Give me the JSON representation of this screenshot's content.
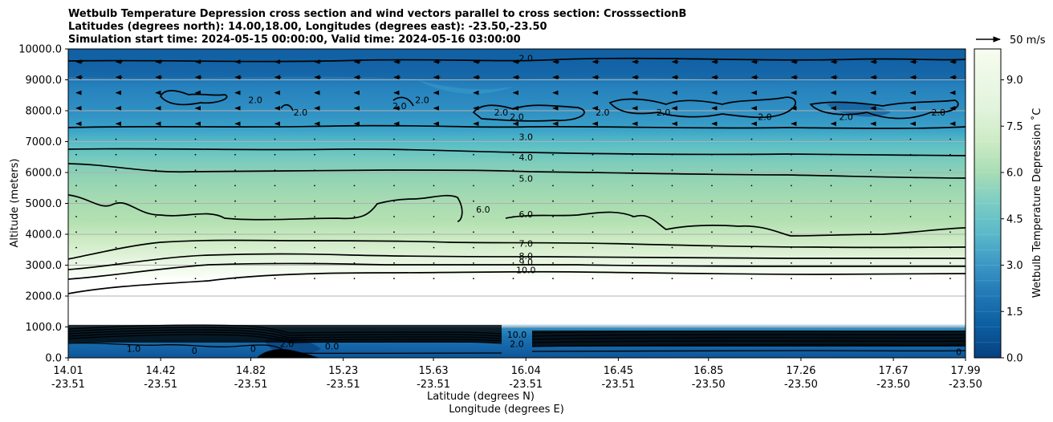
{
  "chart_data": {
    "type": "contour",
    "title_lines": [
      "Wetbulb Temperature Depression cross section and wind vectors parallel to cross section: CrosssectionB",
      "Latitudes (degrees north): 14.00,18.00, Longitudes (degrees east): -23.50,-23.50",
      "Simulation start time: 2024-05-15 00:00:00, Valid time: 2024-05-16 03:00:00"
    ],
    "xlabel": "Latitude (degrees N)",
    "xlabel2": "Longitude (degrees E)",
    "ylabel": "Altitude (meters)",
    "colorbar_label": "Wetbulb Temperature Depression ˚C",
    "quiver_key_label": "50 m/s",
    "xlim": [
      14.01,
      17.99
    ],
    "ylim": [
      0,
      10000
    ],
    "x_ticks": [
      {
        "lat": "14.01",
        "lon": "-23.51"
      },
      {
        "lat": "14.42",
        "lon": "-23.51"
      },
      {
        "lat": "14.82",
        "lon": "-23.51"
      },
      {
        "lat": "15.23",
        "lon": "-23.51"
      },
      {
        "lat": "15.63",
        "lon": "-23.51"
      },
      {
        "lat": "16.04",
        "lon": "-23.51"
      },
      {
        "lat": "16.45",
        "lon": "-23.51"
      },
      {
        "lat": "16.85",
        "lon": "-23.50"
      },
      {
        "lat": "17.26",
        "lon": "-23.50"
      },
      {
        "lat": "17.67",
        "lon": "-23.50"
      },
      {
        "lat": "17.99",
        "lon": "-23.50"
      }
    ],
    "y_ticks": [
      "0.0",
      "1000.0",
      "2000.0",
      "3000.0",
      "4000.0",
      "5000.0",
      "6000.0",
      "7000.0",
      "8000.0",
      "9000.0",
      "10000.0"
    ],
    "colorbar_ticks": [
      "0.0",
      "1.5",
      "3.0",
      "4.5",
      "6.0",
      "7.5",
      "9.0"
    ],
    "colorbar_range": [
      0,
      10
    ],
    "grid": "horizontal",
    "contour_labels": [
      {
        "text": "2.0",
        "lat": 16.04,
        "alt": 9700
      },
      {
        "text": "2.0",
        "lat": 14.84,
        "alt": 8350
      },
      {
        "text": "2.0",
        "lat": 15.04,
        "alt": 7950
      },
      {
        "text": "2.0",
        "lat": 15.48,
        "alt": 8150
      },
      {
        "text": "2.0",
        "lat": 15.58,
        "alt": 8350
      },
      {
        "text": "2.0",
        "lat": 15.93,
        "alt": 7950
      },
      {
        "text": "2.0",
        "lat": 16.0,
        "alt": 7800
      },
      {
        "text": "2.0",
        "lat": 16.38,
        "alt": 7950
      },
      {
        "text": "2.0",
        "lat": 16.65,
        "alt": 7950
      },
      {
        "text": "2.0",
        "lat": 17.1,
        "alt": 7800
      },
      {
        "text": "2.0",
        "lat": 17.46,
        "alt": 7800
      },
      {
        "text": "2.0",
        "lat": 17.87,
        "alt": 7950
      },
      {
        "text": "3.0",
        "lat": 16.04,
        "alt": 7150
      },
      {
        "text": "4.0",
        "lat": 16.04,
        "alt": 6500
      },
      {
        "text": "5.0",
        "lat": 16.04,
        "alt": 5800
      },
      {
        "text": "6.0",
        "lat": 15.85,
        "alt": 4800
      },
      {
        "text": "6.0",
        "lat": 16.04,
        "alt": 4650
      },
      {
        "text": "7.0",
        "lat": 16.04,
        "alt": 3700
      },
      {
        "text": "8.0",
        "lat": 16.04,
        "alt": 3300
      },
      {
        "text": "9.0",
        "lat": 16.04,
        "alt": 3100
      },
      {
        "text": "10.0",
        "lat": 16.04,
        "alt": 2850
      },
      {
        "text": "10.0",
        "lat": 16.0,
        "alt": 750
      },
      {
        "text": "1.0",
        "lat": 14.3,
        "alt": 300
      },
      {
        "text": "0",
        "lat": 14.57,
        "alt": 230
      },
      {
        "text": "0",
        "lat": 14.83,
        "alt": 300
      },
      {
        "text": "2.0",
        "lat": 14.98,
        "alt": 450
      },
      {
        "text": "0.0",
        "lat": 15.18,
        "alt": 380
      },
      {
        "text": "2.0",
        "lat": 16.0,
        "alt": 450
      },
      {
        "text": "0",
        "lat": 17.96,
        "alt": 200
      }
    ],
    "fill_bands": [
      {
        "alt_range": [
          8600,
          10000
        ],
        "value_range": [
          0.5,
          1.5
        ],
        "note": "dark blue upper band"
      },
      {
        "alt_range": [
          7300,
          8600
        ],
        "value_range": [
          1.5,
          2.5
        ],
        "note": "blue"
      },
      {
        "alt_range": [
          6000,
          7300
        ],
        "value_range": [
          3.0,
          5.0
        ],
        "note": "teal"
      },
      {
        "alt_range": [
          3700,
          6000
        ],
        "value_range": [
          5.0,
          7.0
        ],
        "note": "green"
      },
      {
        "alt_range": [
          2500,
          3700
        ],
        "value_range": [
          7.0,
          10.0
        ],
        "note": "light green"
      },
      {
        "alt_range": [
          1000,
          2500
        ],
        "value_range": [
          10.0,
          10.0
        ],
        "note": "above max, white"
      },
      {
        "alt_range": [
          0,
          900
        ],
        "value_range": [
          0.0,
          2.0
        ],
        "note": "boundary layer blue"
      }
    ],
    "wind_vectors": "westward (leftward) arrows above ~7000 m; near-zero dots below"
  }
}
